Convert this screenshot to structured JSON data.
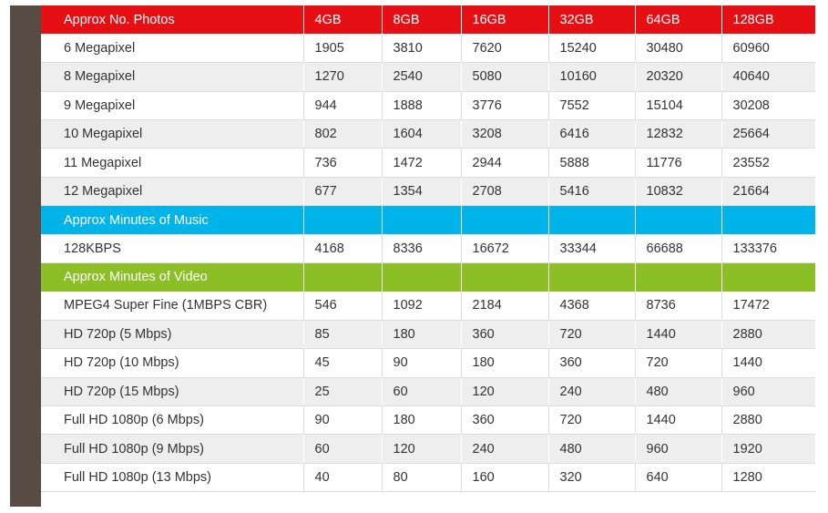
{
  "photos_section": {
    "header": [
      "Approx No. Photos",
      "4GB",
      "8GB",
      "16GB",
      "32GB",
      "64GB",
      "128GB"
    ],
    "rows": [
      [
        "6 Megapixel",
        "1905",
        "3810",
        "7620",
        "15240",
        "30480",
        "60960"
      ],
      [
        "8 Megapixel",
        "1270",
        "2540",
        "5080",
        "10160",
        "20320",
        "40640"
      ],
      [
        "9 Megapixel",
        "944",
        "1888",
        "3776",
        "7552",
        "15104",
        "30208"
      ],
      [
        "10 Megapixel",
        "802",
        "1604",
        "3208",
        "6416",
        "12832",
        "25664"
      ],
      [
        "11 Megapixel",
        "736",
        "1472",
        "2944",
        "5888",
        "11776",
        "23552"
      ],
      [
        "12 Megapixel",
        "677",
        "1354",
        "2708",
        "5416",
        "10832",
        "21664"
      ]
    ]
  },
  "music_section": {
    "header": [
      "Approx Minutes of Music",
      "",
      "",
      "",
      "",
      "",
      ""
    ],
    "rows": [
      [
        "128KBPS",
        "4168",
        "8336",
        "16672",
        "33344",
        "66688",
        "133376"
      ]
    ]
  },
  "video_section": {
    "header": [
      "Approx Minutes of Video",
      "",
      "",
      "",
      "",
      "",
      ""
    ],
    "rows": [
      [
        "MPEG4 Super Fine (1MBPS CBR)",
        "546",
        "1092",
        "2184",
        "4368",
        "8736",
        "17472"
      ],
      [
        "HD 720p (5 Mbps)",
        "85",
        "180",
        "360",
        "720",
        "1440",
        "2880"
      ],
      [
        "HD 720p (10 Mbps)",
        "45",
        "90",
        "180",
        "360",
        "720",
        "1440"
      ],
      [
        "HD 720p (15 Mbps)",
        "25",
        "60",
        "120",
        "240",
        "480",
        "960"
      ],
      [
        "Full HD 1080p (6 Mbps)",
        "90",
        "180",
        "360",
        "720",
        "1440",
        "2880"
      ],
      [
        "Full HD 1080p (9 Mbps)",
        "60",
        "120",
        "240",
        "480",
        "960",
        "1920"
      ],
      [
        "Full HD 1080p (13 Mbps)",
        "40",
        "80",
        "160",
        "320",
        "640",
        "1280"
      ]
    ]
  },
  "colors": {
    "photos_header": "#e60f13",
    "music_header": "#00b4ea",
    "video_header": "#8cbf26",
    "side_bar": "#574b43",
    "alt_row": "#efeeee"
  }
}
